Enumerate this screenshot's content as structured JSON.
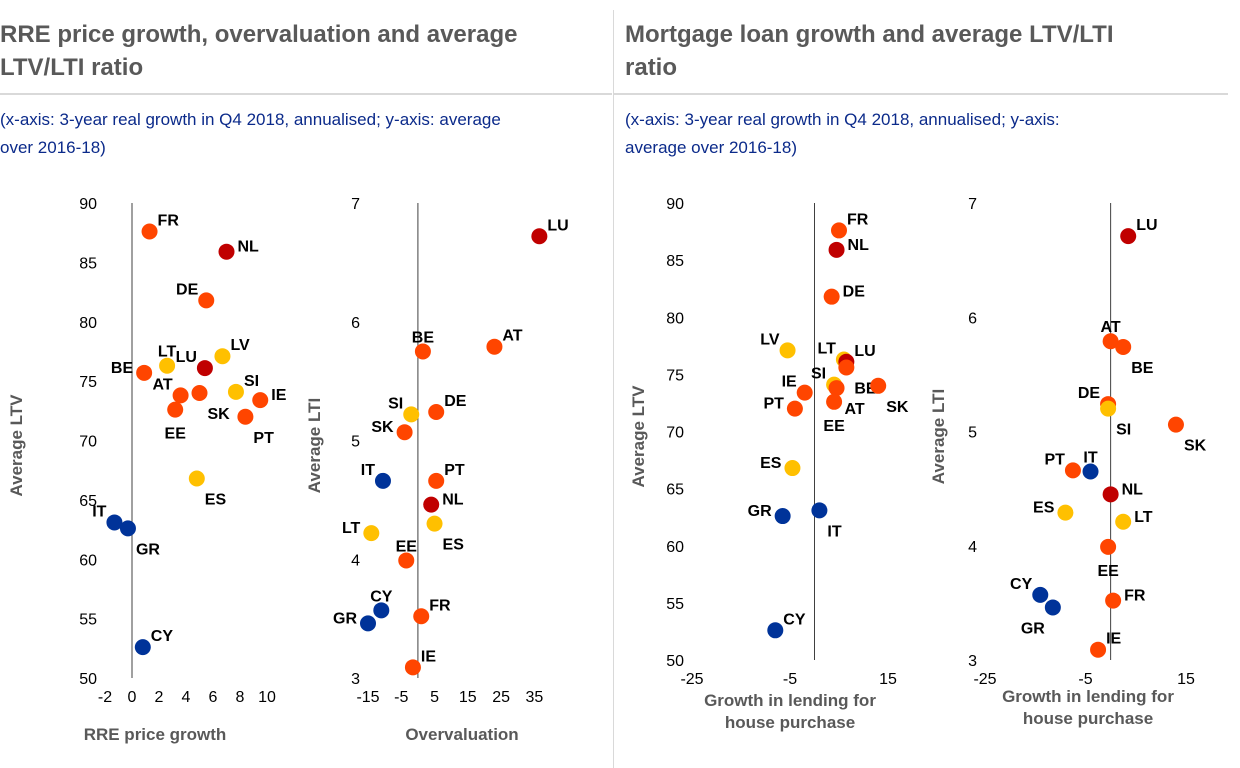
{
  "panels": [
    {
      "title_line1": "RRE price growth, overvaluation and average",
      "title_line2": "LTV/LTI ratio",
      "subtitle_line1": "(x-axis: 3-year real growth in Q4 2018, annualised; y-axis: average",
      "subtitle_line2": "over 2016-18)"
    },
    {
      "title_line1": "Mortgage loan growth and average LTV/LTI",
      "title_line2": "ratio",
      "subtitle_line1": "(x-axis: 3-year real growth in Q4 2018, annualised; y-axis:",
      "subtitle_line2": "average over 2016-18)"
    }
  ],
  "colors": {
    "dark_red": "#c00000",
    "orange_red": "#ff4500",
    "yellow": "#ffc000",
    "blue": "#003399",
    "axis_text": "#000000",
    "axis_label": "#595959",
    "subtitle": "#0b2a8a"
  },
  "chart_data": [
    {
      "type": "scatter",
      "xlabel": "RRE price growth",
      "ylabel": "Average LTV",
      "xlim": [
        -2,
        10
      ],
      "ylim": [
        50,
        90
      ],
      "xticks": [
        -2,
        0,
        2,
        4,
        6,
        8,
        10
      ],
      "yticks": [
        50,
        55,
        60,
        65,
        70,
        75,
        80,
        85,
        90
      ],
      "points": [
        {
          "label": "FR",
          "x": 1.3,
          "y": 87.6,
          "color": "orange_red",
          "anchor": "ne"
        },
        {
          "label": "NL",
          "x": 7.0,
          "y": 85.9,
          "color": "dark_red",
          "anchor": "e"
        },
        {
          "label": "DE",
          "x": 5.5,
          "y": 81.8,
          "color": "orange_red",
          "anchor": "nw"
        },
        {
          "label": "LT",
          "x": 2.6,
          "y": 76.3,
          "color": "yellow",
          "anchor": "n"
        },
        {
          "label": "LV",
          "x": 6.7,
          "y": 77.1,
          "color": "yellow",
          "anchor": "ne"
        },
        {
          "label": "LU",
          "x": 5.4,
          "y": 76.1,
          "color": "dark_red",
          "anchor": "nw"
        },
        {
          "label": "BE",
          "x": 0.9,
          "y": 75.7,
          "color": "orange_red",
          "anchor": "w"
        },
        {
          "label": "SI",
          "x": 7.7,
          "y": 74.1,
          "color": "yellow",
          "anchor": "ne"
        },
        {
          "label": "AT",
          "x": 3.6,
          "y": 73.8,
          "color": "orange_red",
          "anchor": "nw"
        },
        {
          "label": "SK",
          "x": 5.0,
          "y": 74.0,
          "color": "orange_red",
          "anchor": "se"
        },
        {
          "label": "IE",
          "x": 9.5,
          "y": 73.4,
          "color": "orange_red",
          "anchor": "e"
        },
        {
          "label": "EE",
          "x": 3.2,
          "y": 72.6,
          "color": "orange_red",
          "anchor": "s"
        },
        {
          "label": "PT",
          "x": 8.4,
          "y": 72.0,
          "color": "orange_red",
          "anchor": "se"
        },
        {
          "label": "ES",
          "x": 4.8,
          "y": 66.8,
          "color": "yellow",
          "anchor": "se"
        },
        {
          "label": "IT",
          "x": -1.3,
          "y": 63.1,
          "color": "blue",
          "anchor": "nw"
        },
        {
          "label": "GR",
          "x": -0.3,
          "y": 62.6,
          "color": "blue",
          "anchor": "se"
        },
        {
          "label": "CY",
          "x": 0.8,
          "y": 52.6,
          "color": "blue",
          "anchor": "ne"
        }
      ]
    },
    {
      "type": "scatter",
      "xlabel": "Overvaluation",
      "ylabel": "Average LTI",
      "xlim": [
        -15,
        40
      ],
      "ylim": [
        3,
        7
      ],
      "xticks": [
        -15,
        -5,
        5,
        15,
        25,
        35
      ],
      "yticks": [
        3,
        4,
        5,
        6,
        7
      ],
      "points": [
        {
          "label": "LU",
          "x": 36.5,
          "y": 6.72,
          "color": "dark_red",
          "anchor": "ne"
        },
        {
          "label": "AT",
          "x": 23.0,
          "y": 5.79,
          "color": "orange_red",
          "anchor": "ne"
        },
        {
          "label": "BE",
          "x": 1.5,
          "y": 5.75,
          "color": "orange_red",
          "anchor": "n"
        },
        {
          "label": "SI",
          "x": -2.0,
          "y": 5.22,
          "color": "yellow",
          "anchor": "nw"
        },
        {
          "label": "DE",
          "x": 5.5,
          "y": 5.24,
          "color": "orange_red",
          "anchor": "ne"
        },
        {
          "label": "SK",
          "x": -4.0,
          "y": 5.07,
          "color": "orange_red",
          "anchor": "w"
        },
        {
          "label": "IT",
          "x": -10.5,
          "y": 4.66,
          "color": "blue",
          "anchor": "nw"
        },
        {
          "label": "PT",
          "x": 5.5,
          "y": 4.66,
          "color": "orange_red",
          "anchor": "ne"
        },
        {
          "label": "NL",
          "x": 4.0,
          "y": 4.46,
          "color": "dark_red",
          "anchor": "e"
        },
        {
          "label": "ES",
          "x": 5.0,
          "y": 4.3,
          "color": "yellow",
          "anchor": "se"
        },
        {
          "label": "LT",
          "x": -14.0,
          "y": 4.22,
          "color": "yellow",
          "anchor": "w"
        },
        {
          "label": "EE",
          "x": -3.5,
          "y": 3.99,
          "color": "orange_red",
          "anchor": "n"
        },
        {
          "label": "CY",
          "x": -11.0,
          "y": 3.57,
          "color": "blue",
          "anchor": "n"
        },
        {
          "label": "GR",
          "x": -15.0,
          "y": 3.46,
          "color": "blue",
          "anchor": "w"
        },
        {
          "label": "FR",
          "x": 1.0,
          "y": 3.52,
          "color": "orange_red",
          "anchor": "ne"
        },
        {
          "label": "IE",
          "x": -1.5,
          "y": 3.09,
          "color": "orange_red",
          "anchor": "ne"
        }
      ]
    },
    {
      "type": "scatter",
      "xlabel": "Growth in lending for house purchase",
      "ylabel": "Average LTV",
      "xlim": [
        -25,
        15
      ],
      "ylim": [
        50,
        90
      ],
      "xticks": [
        -25,
        -5,
        15
      ],
      "yticks": [
        50,
        55,
        60,
        65,
        70,
        75,
        80,
        85,
        90
      ],
      "points": [
        {
          "label": "FR",
          "x": 5.0,
          "y": 87.6,
          "color": "orange_red",
          "anchor": "ne"
        },
        {
          "label": "NL",
          "x": 4.5,
          "y": 85.9,
          "color": "dark_red",
          "anchor": "e"
        },
        {
          "label": "DE",
          "x": 3.5,
          "y": 81.8,
          "color": "orange_red",
          "anchor": "e"
        },
        {
          "label": "LV",
          "x": -5.5,
          "y": 77.1,
          "color": "yellow",
          "anchor": "nw"
        },
        {
          "label": "LT",
          "x": 6.0,
          "y": 76.3,
          "color": "yellow",
          "anchor": "nw"
        },
        {
          "label": "LU",
          "x": 6.5,
          "y": 76.1,
          "color": "dark_red",
          "anchor": "ne"
        },
        {
          "label": "BE",
          "x": 6.5,
          "y": 75.6,
          "color": "orange_red",
          "anchor": "se"
        },
        {
          "label": "SI",
          "x": 4.0,
          "y": 74.1,
          "color": "yellow",
          "anchor": "nw"
        },
        {
          "label": "IE",
          "x": -2.0,
          "y": 73.4,
          "color": "orange_red",
          "anchor": "nw"
        },
        {
          "label": "AT",
          "x": 4.5,
          "y": 73.8,
          "color": "orange_red",
          "anchor": "se"
        },
        {
          "label": "SK",
          "x": 13.0,
          "y": 74.0,
          "color": "orange_red",
          "anchor": "se"
        },
        {
          "label": "EE",
          "x": 4.0,
          "y": 72.6,
          "color": "orange_red",
          "anchor": "s"
        },
        {
          "label": "PT",
          "x": -4.0,
          "y": 72.0,
          "color": "orange_red",
          "anchor": "w"
        },
        {
          "label": "ES",
          "x": -4.5,
          "y": 66.8,
          "color": "yellow",
          "anchor": "w"
        },
        {
          "label": "GR",
          "x": -6.5,
          "y": 62.6,
          "color": "blue",
          "anchor": "w"
        },
        {
          "label": "IT",
          "x": 1.0,
          "y": 63.1,
          "color": "blue",
          "anchor": "se"
        },
        {
          "label": "CY",
          "x": -8.0,
          "y": 52.6,
          "color": "blue",
          "anchor": "ne"
        }
      ]
    },
    {
      "type": "scatter",
      "xlabel": "Growth in lending for house purchase",
      "ylabel": "Average LTI",
      "xlim": [
        -25,
        15
      ],
      "ylim": [
        3,
        7
      ],
      "xticks": [
        -25,
        -5,
        15
      ],
      "yticks": [
        3,
        4,
        5,
        6,
        7
      ],
      "points": [
        {
          "label": "LU",
          "x": 3.5,
          "y": 6.71,
          "color": "dark_red",
          "anchor": "ne"
        },
        {
          "label": "AT",
          "x": 0.0,
          "y": 5.79,
          "color": "orange_red",
          "anchor": "n"
        },
        {
          "label": "BE",
          "x": 2.5,
          "y": 5.74,
          "color": "orange_red",
          "anchor": "se"
        },
        {
          "label": "DE",
          "x": -0.5,
          "y": 5.24,
          "color": "orange_red",
          "anchor": "nw"
        },
        {
          "label": "SI",
          "x": -0.5,
          "y": 5.2,
          "color": "yellow",
          "anchor": "se"
        },
        {
          "label": "SK",
          "x": 13.0,
          "y": 5.06,
          "color": "orange_red",
          "anchor": "se"
        },
        {
          "label": "IT",
          "x": -4.0,
          "y": 4.65,
          "color": "blue",
          "anchor": "n"
        },
        {
          "label": "PT",
          "x": -7.5,
          "y": 4.66,
          "color": "orange_red",
          "anchor": "nw"
        },
        {
          "label": "NL",
          "x": 0.0,
          "y": 4.45,
          "color": "dark_red",
          "anchor": "e"
        },
        {
          "label": "ES",
          "x": -9.0,
          "y": 4.29,
          "color": "yellow",
          "anchor": "w"
        },
        {
          "label": "LT",
          "x": 2.5,
          "y": 4.21,
          "color": "yellow",
          "anchor": "e"
        },
        {
          "label": "EE",
          "x": -0.5,
          "y": 3.99,
          "color": "orange_red",
          "anchor": "s"
        },
        {
          "label": "CY",
          "x": -14.0,
          "y": 3.57,
          "color": "blue",
          "anchor": "nw"
        },
        {
          "label": "FR",
          "x": 0.5,
          "y": 3.52,
          "color": "orange_red",
          "anchor": "e"
        },
        {
          "label": "GR",
          "x": -11.5,
          "y": 3.46,
          "color": "blue",
          "anchor": "sw"
        },
        {
          "label": "IE",
          "x": -2.5,
          "y": 3.09,
          "color": "orange_red",
          "anchor": "ne"
        }
      ]
    }
  ]
}
